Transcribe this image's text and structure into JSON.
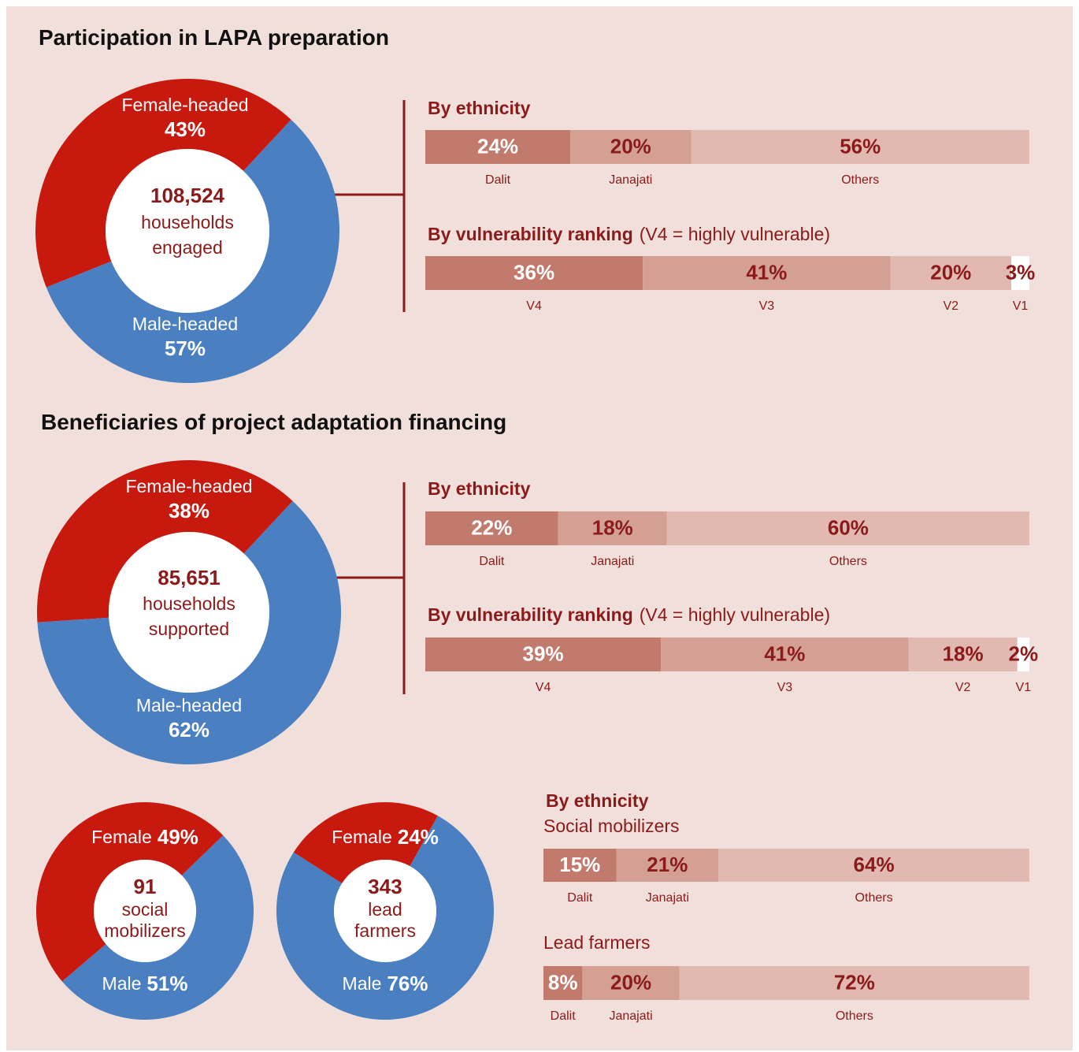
{
  "chart_data": [
    {
      "type": "donut",
      "title": "Participation in LAPA preparation",
      "categories": [
        "Female-headed",
        "Male-headed"
      ],
      "values": [
        43,
        57
      ],
      "value_labels": [
        "43%",
        "57%"
      ],
      "colors": [
        "#c8190f",
        "#4a7fc1"
      ],
      "center_value": "108,524",
      "center_text": [
        "households",
        "engaged"
      ]
    },
    {
      "type": "stacked_bar",
      "title": "By ethnicity",
      "categories": [
        "Dalit",
        "Janajati",
        "Others"
      ],
      "values": [
        24,
        20,
        56
      ],
      "value_labels": [
        "24%",
        "20%",
        "56%"
      ],
      "colors": [
        "#c27a6d",
        "#d4a094",
        "#e1b9b0"
      ]
    },
    {
      "type": "stacked_bar",
      "title": "By vulnerability ranking",
      "subtitle": "(V4 = highly vulnerable)",
      "categories": [
        "V4",
        "V3",
        "V2",
        "V1"
      ],
      "values": [
        36,
        41,
        20,
        3
      ],
      "value_labels": [
        "36%",
        "41%",
        "20%",
        "3%"
      ],
      "colors": [
        "#c27a6d",
        "#d4a094",
        "#e1b9b0",
        "#ffffff"
      ]
    },
    {
      "type": "donut",
      "title": "Beneficiaries of project adaptation financing",
      "categories": [
        "Female-headed",
        "Male-headed"
      ],
      "values": [
        38,
        62
      ],
      "value_labels": [
        "38%",
        "62%"
      ],
      "colors": [
        "#c8190f",
        "#4a7fc1"
      ],
      "center_value": "85,651",
      "center_text": [
        "households",
        "supported"
      ]
    },
    {
      "type": "stacked_bar",
      "title": "By ethnicity",
      "categories": [
        "Dalit",
        "Janajati",
        "Others"
      ],
      "values": [
        22,
        18,
        60
      ],
      "value_labels": [
        "22%",
        "18%",
        "60%"
      ],
      "colors": [
        "#c27a6d",
        "#d4a094",
        "#e1b9b0"
      ]
    },
    {
      "type": "stacked_bar",
      "title": "By vulnerability ranking",
      "subtitle": "(V4 = highly vulnerable)",
      "categories": [
        "V4",
        "V3",
        "V2",
        "V1"
      ],
      "values": [
        39,
        41,
        18,
        2
      ],
      "value_labels": [
        "39%",
        "41%",
        "18%",
        "2%"
      ],
      "colors": [
        "#c27a6d",
        "#d4a094",
        "#e1b9b0",
        "#ffffff"
      ]
    },
    {
      "type": "donut",
      "categories": [
        "Female",
        "Male"
      ],
      "values": [
        49,
        51
      ],
      "value_labels": [
        "49%",
        "51%"
      ],
      "colors": [
        "#c8190f",
        "#4a7fc1"
      ],
      "center_value": "91",
      "center_text": [
        "social",
        "mobilizers"
      ]
    },
    {
      "type": "donut",
      "categories": [
        "Female",
        "Male"
      ],
      "values": [
        24,
        76
      ],
      "value_labels": [
        "24%",
        "76%"
      ],
      "colors": [
        "#c8190f",
        "#4a7fc1"
      ],
      "center_value": "343",
      "center_text": [
        "lead",
        "farmers"
      ]
    },
    {
      "type": "stacked_bar",
      "title": "By ethnicity",
      "subtitle": "Social mobilizers",
      "categories": [
        "Dalit",
        "Janajati",
        "Others"
      ],
      "values": [
        15,
        21,
        64
      ],
      "value_labels": [
        "15%",
        "21%",
        "64%"
      ],
      "colors": [
        "#c27a6d",
        "#d4a094",
        "#e1b9b0"
      ]
    },
    {
      "type": "stacked_bar",
      "subtitle": "Lead farmers",
      "categories": [
        "Dalit",
        "Janajati",
        "Others"
      ],
      "values": [
        8,
        20,
        72
      ],
      "value_labels": [
        "8%",
        "20%",
        "72%"
      ],
      "colors": [
        "#c27a6d",
        "#d4a094",
        "#e1b9b0"
      ]
    }
  ]
}
